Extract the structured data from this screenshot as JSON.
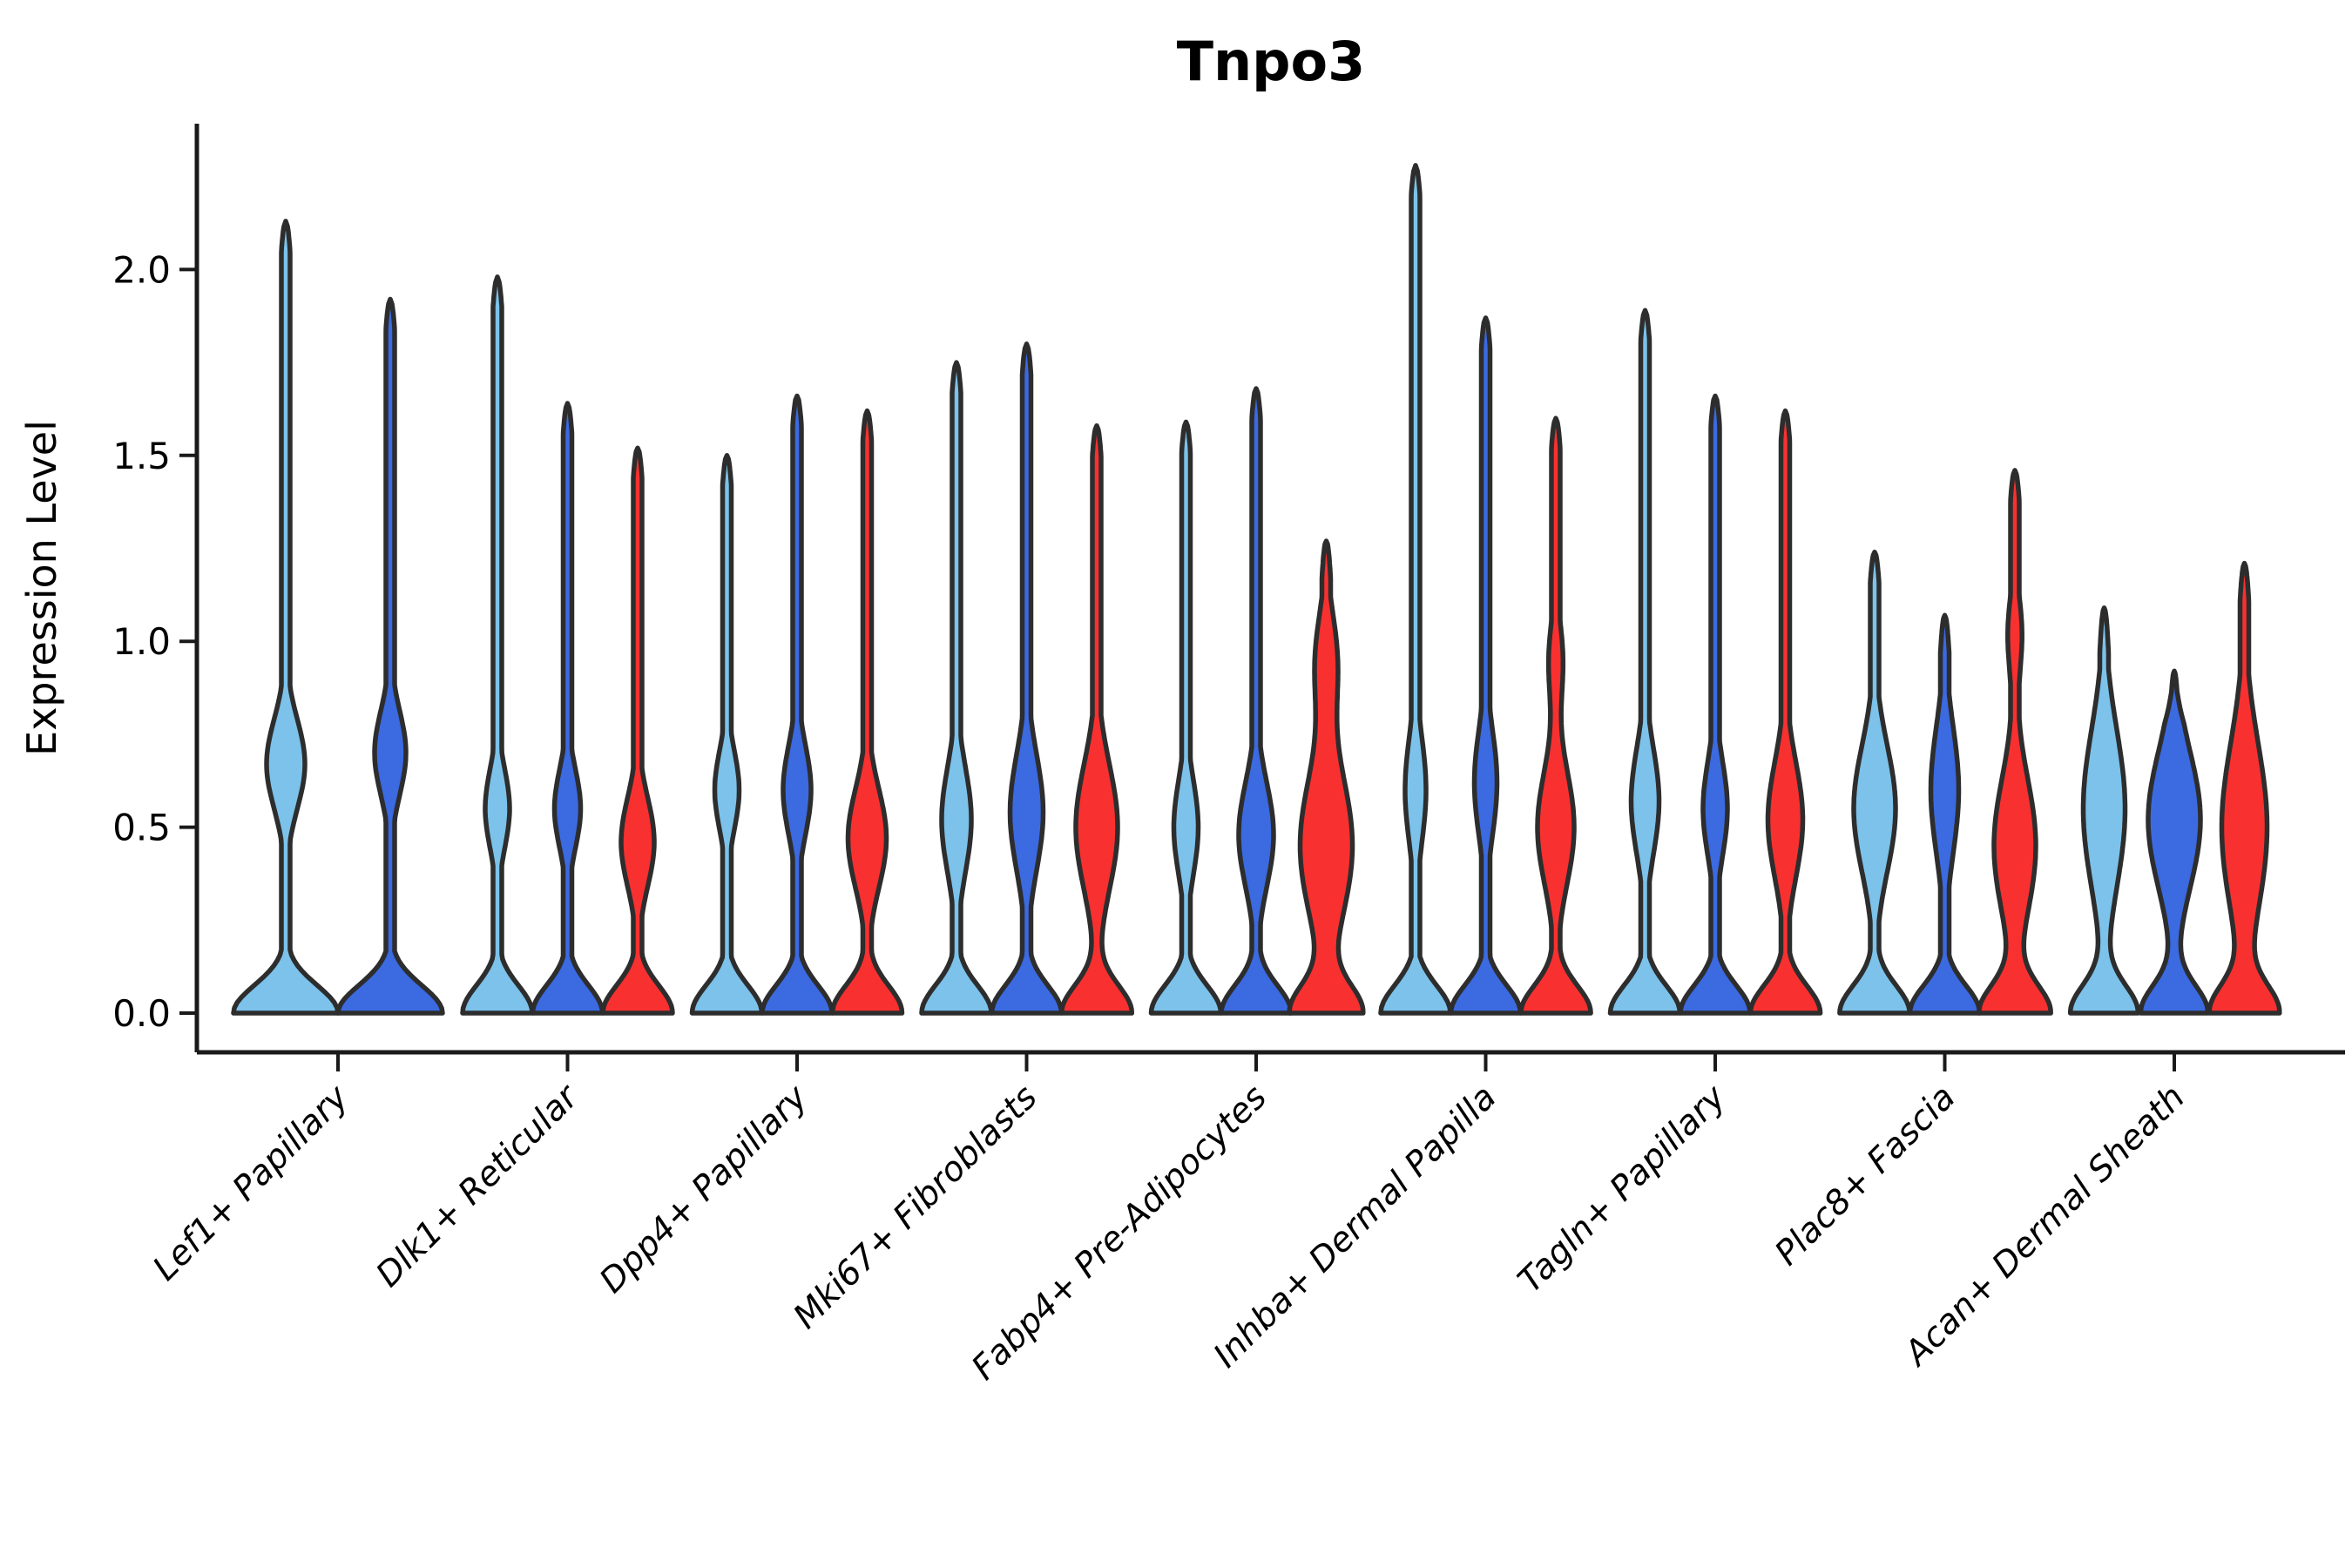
{
  "title": "Tnpo3",
  "yaxis": {
    "label": "Expression Level",
    "ticks": [
      "0.0",
      "0.5",
      "1.0",
      "1.5",
      "2.0"
    ],
    "tick_values": [
      0.0,
      0.5,
      1.0,
      1.5,
      2.0
    ]
  },
  "series": [
    {
      "id": "light_blue",
      "color": "#7CC2EA"
    },
    {
      "id": "dark_blue",
      "color": "#3B6AE1"
    },
    {
      "id": "red",
      "color": "#F93030"
    }
  ],
  "colors": {
    "violin_outline": "#2D2D2D",
    "axis": "#1A1A1A",
    "background": "#FFFFFF"
  },
  "chart_data": {
    "type": "violin",
    "title": "Tnpo3",
    "xlabel": "",
    "ylabel": "Expression Level",
    "ylim": [
      0,
      2.39
    ],
    "yticks": [
      0.0,
      0.5,
      1.0,
      1.5,
      2.0
    ],
    "grid": false,
    "legend": "none",
    "categories": [
      "Lef1+ Papillary",
      "Dlk1+ Reticular",
      "Dpp4+ Papillary",
      "Mki67+ Fibroblasts",
      "Fabp4+ Pre-Adipocytes",
      "Inhba+ Dermal Papilla",
      "Tagln+ Papillary",
      "Plac8+ Fascia",
      "Acan+ Dermal Sheath"
    ],
    "series_colors": {
      "light_blue": "#7CC2EA",
      "dark_blue": "#3B6AE1",
      "red": "#F93030"
    },
    "groups": [
      {
        "category": "Lef1+ Papillary",
        "violins": [
          {
            "series": "light_blue",
            "max_expression": 2.13,
            "density_mode": 0.67,
            "mode_halfwidth": 22,
            "mode_sigma": 0.17,
            "base_halfwidth": 60
          },
          {
            "series": "dark_blue",
            "max_expression": 1.92,
            "density_mode": 0.7,
            "mode_halfwidth": 18,
            "mode_sigma": 0.16,
            "base_halfwidth": 60
          }
        ]
      },
      {
        "category": "Dlk1+ Reticular",
        "violins": [
          {
            "series": "light_blue",
            "max_expression": 1.98,
            "density_mode": 0.55,
            "mode_halfwidth": 14,
            "mode_sigma": 0.15,
            "base_halfwidth": 40
          },
          {
            "series": "dark_blue",
            "max_expression": 1.64,
            "density_mode": 0.55,
            "mode_halfwidth": 15,
            "mode_sigma": 0.15,
            "base_halfwidth": 40
          },
          {
            "series": "red",
            "max_expression": 1.52,
            "density_mode": 0.46,
            "mode_halfwidth": 19,
            "mode_sigma": 0.17,
            "base_halfwidth": 40
          }
        ]
      },
      {
        "category": "Dpp4+ Papillary",
        "violins": [
          {
            "series": "light_blue",
            "max_expression": 1.5,
            "density_mode": 0.6,
            "mode_halfwidth": 14,
            "mode_sigma": 0.15,
            "base_halfwidth": 40
          },
          {
            "series": "dark_blue",
            "max_expression": 1.66,
            "density_mode": 0.6,
            "mode_halfwidth": 16,
            "mode_sigma": 0.17,
            "base_halfwidth": 40
          },
          {
            "series": "red",
            "max_expression": 1.62,
            "density_mode": 0.47,
            "mode_halfwidth": 22,
            "mode_sigma": 0.19,
            "base_halfwidth": 40
          }
        ]
      },
      {
        "category": "Mki67+ Fibroblasts",
        "violins": [
          {
            "series": "light_blue",
            "max_expression": 1.75,
            "density_mode": 0.52,
            "mode_halfwidth": 17,
            "mode_sigma": 0.2,
            "base_halfwidth": 40
          },
          {
            "series": "dark_blue",
            "max_expression": 1.8,
            "density_mode": 0.54,
            "mode_halfwidth": 19,
            "mode_sigma": 0.22,
            "base_halfwidth": 40
          },
          {
            "series": "red",
            "max_expression": 1.58,
            "density_mode": 0.5,
            "mode_halfwidth": 24,
            "mode_sigma": 0.24,
            "base_halfwidth": 40
          }
        ]
      },
      {
        "category": "Fabp4+ Pre-Adipocytes",
        "violins": [
          {
            "series": "light_blue",
            "max_expression": 1.59,
            "density_mode": 0.5,
            "mode_halfwidth": 14,
            "mode_sigma": 0.18,
            "base_halfwidth": 40
          },
          {
            "series": "dark_blue",
            "max_expression": 1.68,
            "density_mode": 0.48,
            "mode_halfwidth": 20,
            "mode_sigma": 0.2,
            "base_halfwidth": 40
          },
          {
            "series": "red",
            "max_expression": 1.27,
            "density_mode": 0.45,
            "mode_halfwidth": 30,
            "mode_sigma": 0.28,
            "mode2": 0.95,
            "mode2_halfwidth": 12,
            "mode2_sigma": 0.18,
            "tip_round": 0.1,
            "base_halfwidth": 40
          }
        ]
      },
      {
        "category": "Inhba+ Dermal Papilla",
        "violins": [
          {
            "series": "light_blue",
            "max_expression": 2.28,
            "density_mode": 0.6,
            "mode_halfwidth": 12,
            "mode_sigma": 0.2,
            "base_halfwidth": 40
          },
          {
            "series": "dark_blue",
            "max_expression": 1.87,
            "density_mode": 0.62,
            "mode_halfwidth": 13,
            "mode_sigma": 0.2,
            "base_halfwidth": 40
          },
          {
            "series": "red",
            "max_expression": 1.6,
            "density_mode": 0.5,
            "mode_halfwidth": 21,
            "mode_sigma": 0.22,
            "mode2": 0.95,
            "mode2_halfwidth": 8,
            "mode2_sigma": 0.15,
            "base_halfwidth": 40
          }
        ]
      },
      {
        "category": "Tagln+ Papillary",
        "violins": [
          {
            "series": "light_blue",
            "max_expression": 1.89,
            "density_mode": 0.57,
            "mode_halfwidth": 16,
            "mode_sigma": 0.2,
            "base_halfwidth": 40
          },
          {
            "series": "dark_blue",
            "max_expression": 1.66,
            "density_mode": 0.55,
            "mode_halfwidth": 14,
            "mode_sigma": 0.18,
            "base_halfwidth": 40
          },
          {
            "series": "red",
            "max_expression": 1.62,
            "density_mode": 0.52,
            "mode_halfwidth": 20,
            "mode_sigma": 0.22,
            "base_halfwidth": 40
          }
        ]
      },
      {
        "category": "Plac8+ Fascia",
        "violins": [
          {
            "series": "light_blue",
            "max_expression": 1.24,
            "density_mode": 0.55,
            "mode_halfwidth": 24,
            "mode_sigma": 0.24,
            "base_halfwidth": 40
          },
          {
            "series": "dark_blue",
            "max_expression": 1.07,
            "density_mode": 0.6,
            "mode_halfwidth": 16,
            "mode_sigma": 0.24,
            "tip_round": 0.1,
            "base_halfwidth": 40
          },
          {
            "series": "red",
            "max_expression": 1.46,
            "density_mode": 0.45,
            "mode_halfwidth": 24,
            "mode_sigma": 0.26,
            "mode2": 1.02,
            "mode2_halfwidth": 8,
            "mode2_sigma": 0.15,
            "base_halfwidth": 40
          }
        ]
      },
      {
        "category": "Acan+ Dermal Sheath",
        "violins": [
          {
            "series": "light_blue",
            "max_expression": 1.09,
            "density_mode": 0.55,
            "mode_halfwidth": 24,
            "mode_sigma": 0.3,
            "tip_round": 0.12,
            "base_halfwidth": 38
          },
          {
            "series": "dark_blue",
            "max_expression": 0.92,
            "density_mode": 0.52,
            "mode_halfwidth": 30,
            "mode_sigma": 0.26,
            "tip_round": 0.14,
            "base_halfwidth": 38
          },
          {
            "series": "red",
            "max_expression": 1.21,
            "density_mode": 0.5,
            "mode_halfwidth": 26,
            "mode_sigma": 0.32,
            "tip_round": 0.1,
            "base_halfwidth": 38
          }
        ]
      }
    ]
  }
}
